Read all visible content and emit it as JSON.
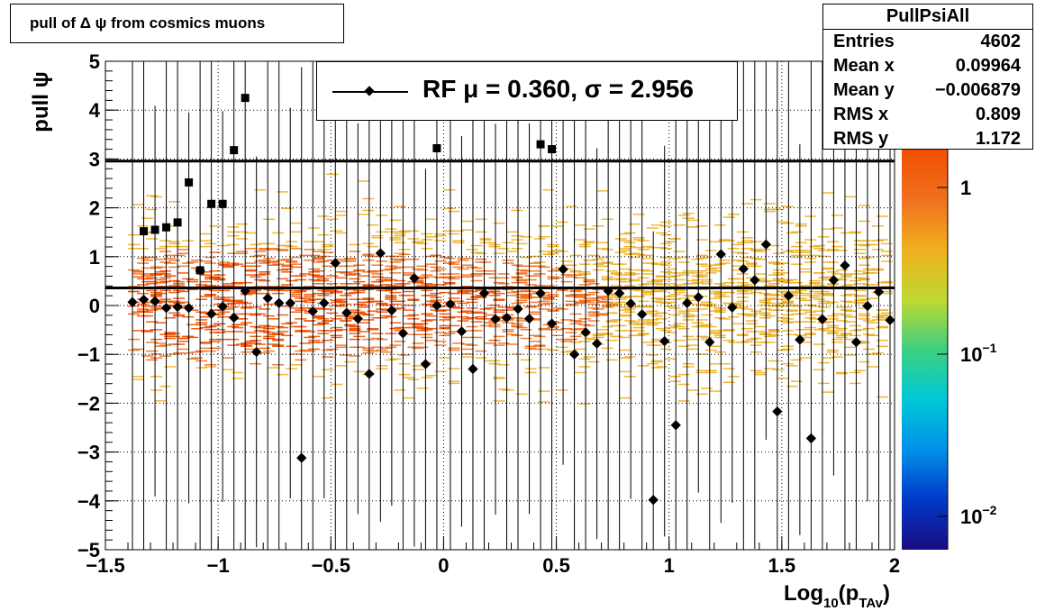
{
  "title": "pull of Δ ψ from cosmics muons",
  "stats": {
    "name": "PullPsiAll",
    "rows": [
      {
        "label": "Entries",
        "value": "4602"
      },
      {
        "label": "Mean x",
        "value": "0.09964"
      },
      {
        "label": "Mean y",
        "value": "−0.006879"
      },
      {
        "label": "RMS x",
        "value": "0.809"
      },
      {
        "label": "RMS y",
        "value": "1.172"
      }
    ]
  },
  "legend": {
    "text": "RF μ =  0.360, σ =   2.956"
  },
  "chart_data": {
    "type": "scatter",
    "xlabel": "Log10(pTAv)",
    "ylabel": "pull ψ",
    "xlim": [
      -1.5,
      2
    ],
    "ylim": [
      -5,
      5
    ],
    "x_ticks": [
      "−1.5",
      "−1",
      "−0.5",
      "0",
      "0.5",
      "1",
      "1.5",
      "2"
    ],
    "y_ticks": [
      "−5",
      "−4",
      "−3",
      "−2",
      "−1",
      "0",
      "1",
      "2",
      "3",
      "4",
      "5"
    ],
    "colorbar_ticks": [
      "1",
      "10−1",
      "10−2"
    ],
    "grid": true,
    "fit_lines": [
      {
        "name": "mean",
        "y": 0.36
      },
      {
        "name": "sigma",
        "y": 2.956
      }
    ],
    "series": [
      {
        "name": "RF",
        "marker": "diamond",
        "x": [
          -1.38,
          -1.33,
          -1.28,
          -1.23,
          -1.18,
          -1.13,
          -1.08,
          -1.03,
          -0.98,
          -0.93,
          -0.88,
          -0.83,
          -0.78,
          -0.73,
          -0.68,
          -0.63,
          -0.58,
          -0.53,
          -0.48,
          -0.43,
          -0.38,
          -0.33,
          -0.28,
          -0.23,
          -0.18,
          -0.13,
          -0.08,
          -0.03,
          0.03,
          0.08,
          0.13,
          0.18,
          0.23,
          0.28,
          0.33,
          0.38,
          0.43,
          0.48,
          0.53,
          0.58,
          0.63,
          0.68,
          0.73,
          0.78,
          0.83,
          0.88,
          0.93,
          0.98,
          1.03,
          1.08,
          1.13,
          1.18,
          1.23,
          1.28,
          1.33,
          1.38,
          1.43,
          1.48,
          1.53,
          1.58,
          1.63,
          1.68,
          1.73,
          1.78,
          1.83,
          1.88,
          1.93,
          1.98
        ],
        "y": [
          0.07,
          0.12,
          0.09,
          -0.05,
          -0.03,
          -0.05,
          0.72,
          -0.17,
          -0.02,
          -0.25,
          0.3,
          -0.95,
          0.15,
          0.05,
          0.05,
          -3.12,
          -0.12,
          0.05,
          0.87,
          -0.15,
          -0.27,
          -1.4,
          1.07,
          -0.1,
          -0.57,
          0.56,
          -1.2,
          0.0,
          0.03,
          -0.53,
          -1.3,
          0.25,
          -0.28,
          -0.25,
          -0.07,
          -0.27,
          0.25,
          -0.37,
          0.74,
          -1.0,
          -0.55,
          -0.78,
          0.3,
          0.25,
          0.04,
          -0.18,
          -3.98,
          -0.73,
          -2.45,
          0.05,
          0.17,
          -0.75,
          1.05,
          -0.04,
          0.75,
          0.52,
          1.25,
          -2.17,
          0.2,
          -0.7,
          -2.72,
          -0.28,
          0.52,
          0.82,
          -0.75,
          -0.01,
          0.28,
          -0.3
        ]
      },
      {
        "name": "",
        "marker": "square",
        "x": [
          -1.33,
          -1.28,
          -1.23,
          -1.18,
          -1.13,
          -1.08,
          -1.03,
          -0.98,
          -0.93,
          -0.88,
          -0.03,
          0.43,
          0.48
        ],
        "y": [
          1.52,
          1.55,
          1.6,
          1.7,
          2.52,
          0.72,
          2.08,
          2.08,
          3.18,
          4.25,
          3.22,
          3.3,
          3.2
        ]
      }
    ]
  },
  "colors": {
    "scale": [
      "#1a0b80",
      "#0039c8",
      "#0090e8",
      "#00c8d8",
      "#3cd080",
      "#c0d830",
      "#f0b020",
      "#f07020",
      "#f05000"
    ],
    "marker": "#000000"
  }
}
